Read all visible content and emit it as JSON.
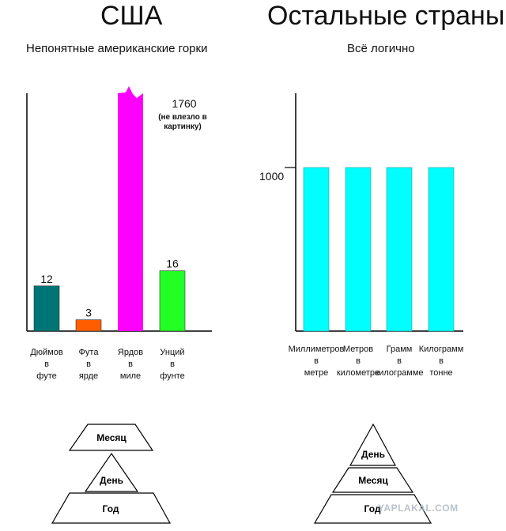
{
  "headings": {
    "usa": "США",
    "others": "Остальные страны"
  },
  "subheadings": {
    "usa": "Непонятные американские горки",
    "others": "Всё логично"
  },
  "chart_data": [
    {
      "type": "bar",
      "categories": [
        [
          "Дюймов",
          "в",
          "футе"
        ],
        [
          "Фута",
          "в",
          "ярде"
        ],
        [
          "Ярдов",
          "в",
          "миле"
        ],
        [
          "Унций",
          "в",
          "фунте"
        ]
      ],
      "values": [
        12,
        3,
        1760,
        16
      ],
      "value_labels": [
        "12",
        "3",
        "1760",
        "16"
      ],
      "colors": [
        "#007575",
        "#ff5d00",
        "#ff00ff",
        "#22ff22"
      ],
      "note": "(не влезло в картинку)",
      "ylim": [
        0,
        56
      ],
      "clipped": [
        false,
        false,
        true,
        false
      ],
      "grid": false
    },
    {
      "type": "bar",
      "categories": [
        [
          "Миллиметров",
          "в",
          "метре"
        ],
        [
          "Метров",
          "в",
          "километре"
        ],
        [
          "Грамм",
          "в",
          "килограмме"
        ],
        [
          "Килограмм",
          "в",
          "тонне"
        ]
      ],
      "values": [
        1000,
        1000,
        1000,
        1000
      ],
      "reference_label": "1000",
      "colors": [
        "#00ffff",
        "#00ffff",
        "#00ffff",
        "#00ffff"
      ],
      "ylim": [
        0,
        1000
      ],
      "grid": false
    }
  ],
  "pyramids": {
    "usa": [
      "Месяц",
      "День",
      "Год"
    ],
    "others": [
      "День",
      "Месяц",
      "Год"
    ]
  },
  "watermark": "YAPLAKAL.COM"
}
